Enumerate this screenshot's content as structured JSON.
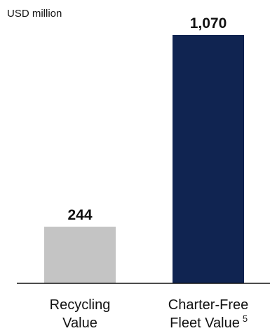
{
  "chart_data": {
    "type": "bar",
    "unit_label": "USD million",
    "categories": [
      {
        "lines": [
          "Recycling",
          "Value"
        ],
        "superscript": ""
      },
      {
        "lines": [
          "Charter-Free",
          "Fleet Value"
        ],
        "superscript": "5"
      }
    ],
    "values": [
      244,
      1070
    ],
    "value_labels": [
      "244",
      "1,070"
    ],
    "colors": [
      "#c4c4c4",
      "#102451"
    ],
    "ylim": [
      0,
      1070
    ],
    "grid": false,
    "legend": "none"
  }
}
